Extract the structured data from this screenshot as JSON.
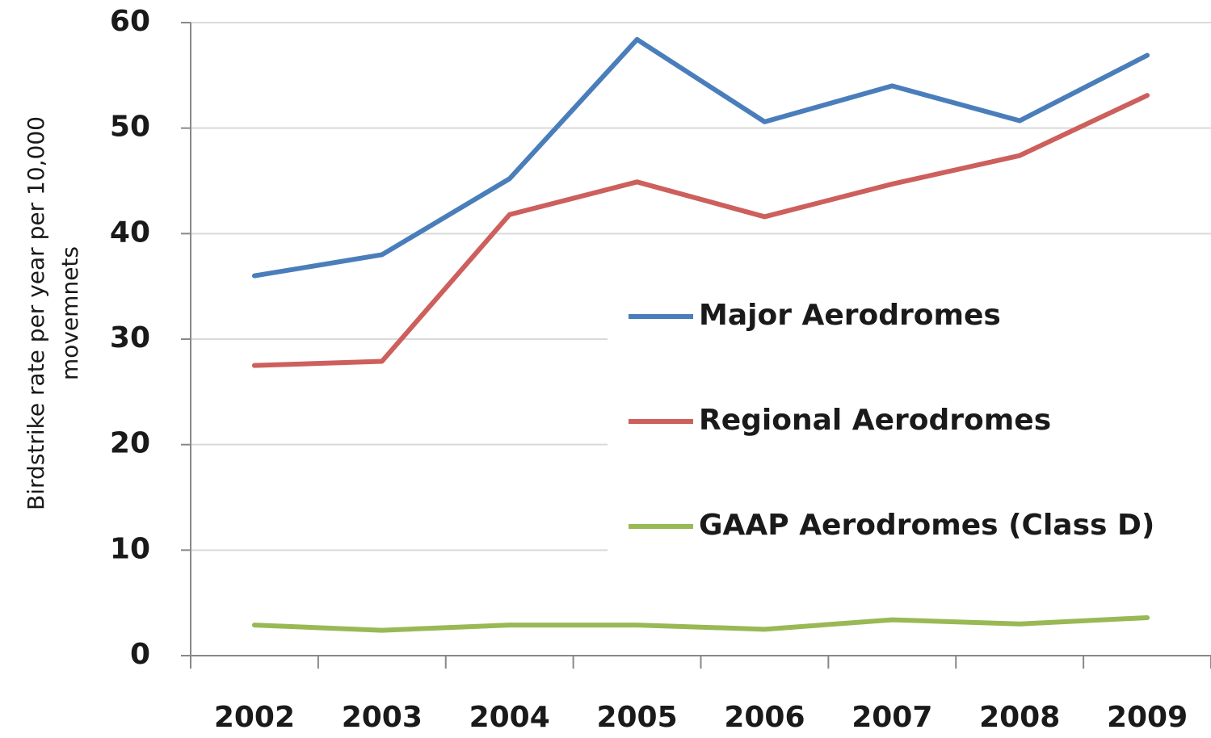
{
  "chart_data": {
    "type": "line",
    "ylabel": [
      "Birdstrike rate per year per 10,000",
      "movemnets"
    ],
    "categories": [
      "2002",
      "2003",
      "2004",
      "2005",
      "2006",
      "2007",
      "2008",
      "2009"
    ],
    "series": [
      {
        "name": "Major Aerodromes",
        "color": "#4a7ebb",
        "values": [
          36.0,
          38.0,
          45.2,
          58.4,
          50.6,
          54.0,
          50.7,
          56.9
        ]
      },
      {
        "name": "Regional Aerodromes",
        "color": "#cd5f5c",
        "values": [
          27.5,
          27.9,
          41.8,
          44.9,
          41.6,
          44.7,
          47.4,
          53.1
        ]
      },
      {
        "name": "GAAP Aerodromes (Class D)",
        "color": "#98b954",
        "values": [
          2.9,
          2.4,
          2.9,
          2.9,
          2.5,
          3.4,
          3.0,
          3.6
        ]
      }
    ],
    "ylim": [
      0,
      60
    ],
    "yticks": [
      0,
      10,
      20,
      30,
      40,
      50,
      60
    ],
    "grid": true
  }
}
